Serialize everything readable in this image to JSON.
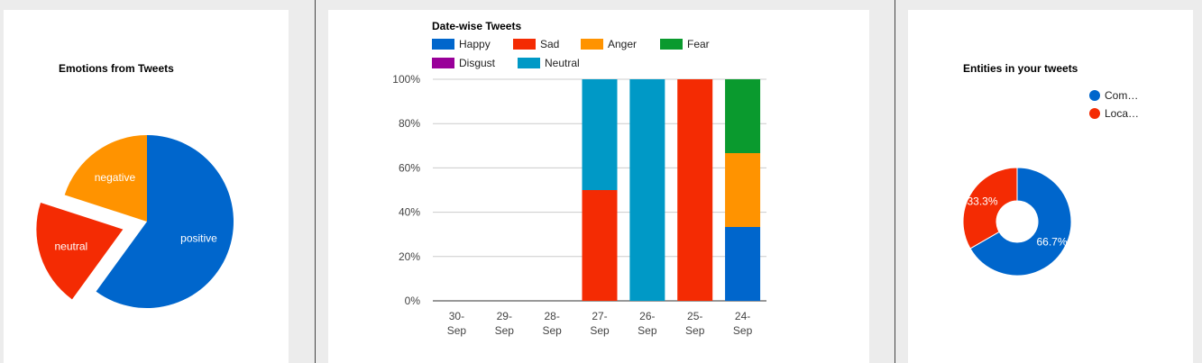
{
  "chart_data": [
    {
      "type": "pie",
      "title": "Emotions from Tweets",
      "slices": [
        {
          "label": "positive",
          "value": 60,
          "color": "#0066cc"
        },
        {
          "label": "neutral",
          "value": 20,
          "color": "#f42b03",
          "exploded": true
        },
        {
          "label": "negative",
          "value": 20,
          "color": "#ff9300"
        }
      ]
    },
    {
      "type": "bar",
      "stacked": "percent",
      "title": "Date-wise Tweets",
      "categories": [
        "30-Sep",
        "29-Sep",
        "28-Sep",
        "27-Sep",
        "26-Sep",
        "25-Sep",
        "24-Sep"
      ],
      "category_lines": [
        [
          "30-",
          "Sep"
        ],
        [
          "29-",
          "Sep"
        ],
        [
          "28-",
          "Sep"
        ],
        [
          "27-",
          "Sep"
        ],
        [
          "26-",
          "Sep"
        ],
        [
          "25-",
          "Sep"
        ],
        [
          "24-",
          "Sep"
        ]
      ],
      "series": [
        {
          "name": "Happy",
          "color": "#0066cc",
          "values": [
            0,
            0,
            0,
            0,
            0,
            0,
            1
          ]
        },
        {
          "name": "Sad",
          "color": "#f42b03",
          "values": [
            0,
            0,
            0,
            1,
            0,
            1,
            0
          ]
        },
        {
          "name": "Anger",
          "color": "#ff9300",
          "values": [
            0,
            0,
            0,
            0,
            0,
            0,
            1
          ]
        },
        {
          "name": "Fear",
          "color": "#0a9a2e",
          "values": [
            0,
            0,
            0,
            0,
            0,
            0,
            1
          ]
        },
        {
          "name": "Disgust",
          "color": "#990099",
          "values": [
            0,
            0,
            0,
            0,
            0,
            0,
            0
          ]
        },
        {
          "name": "Neutral",
          "color": "#0099c6",
          "values": [
            0,
            0,
            0,
            1,
            1,
            0,
            0
          ]
        }
      ],
      "yticks": [
        "0%",
        "20%",
        "40%",
        "60%",
        "80%",
        "100%"
      ],
      "ylim": [
        0,
        100
      ],
      "legend": "top",
      "grid": true
    },
    {
      "type": "pie",
      "donut": true,
      "title": "Entities in your tweets",
      "slices": [
        {
          "label": "Com…",
          "value": 66.7,
          "pct_label": "66.7%",
          "color": "#0066cc"
        },
        {
          "label": "Loca…",
          "value": 33.3,
          "pct_label": "33.3%",
          "color": "#f42b03"
        }
      ],
      "legend": "right"
    }
  ]
}
